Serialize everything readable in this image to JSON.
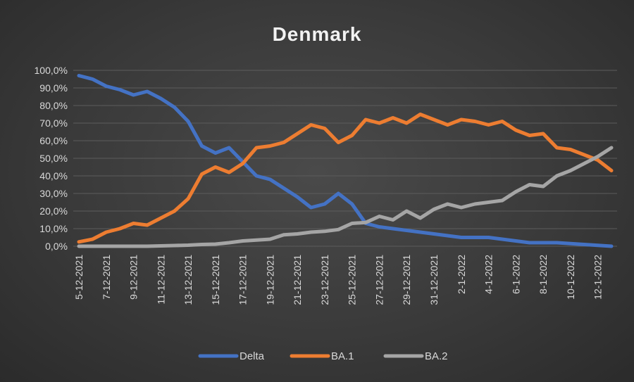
{
  "chart_data": {
    "type": "line",
    "title": "Denmark",
    "xlabel": "",
    "ylabel": "",
    "ylim": [
      0,
      100
    ],
    "grid": true,
    "legend_position": "bottom",
    "y_ticks": [
      "0,0%",
      "10,0%",
      "20,0%",
      "30,0%",
      "40,0%",
      "50,0%",
      "60,0%",
      "70,0%",
      "80,0%",
      "90,0%",
      "100,0%"
    ],
    "categories": [
      "5-12-2021",
      "6-12-2021",
      "7-12-2021",
      "8-12-2021",
      "9-12-2021",
      "10-12-2021",
      "11-12-2021",
      "12-12-2021",
      "13-12-2021",
      "14-12-2021",
      "15-12-2021",
      "16-12-2021",
      "17-12-2021",
      "18-12-2021",
      "19-12-2021",
      "20-12-2021",
      "21-12-2021",
      "22-12-2021",
      "23-12-2021",
      "24-12-2021",
      "25-12-2021",
      "26-12-2021",
      "27-12-2021",
      "28-12-2021",
      "29-12-2021",
      "30-12-2021",
      "31-12-2021",
      "1-1-2022",
      "2-1-2022",
      "3-1-2022",
      "4-1-2022",
      "5-1-2022",
      "6-1-2022",
      "7-1-2022",
      "8-1-2022",
      "9-1-2022",
      "10-1-2022",
      "11-1-2022",
      "12-1-2022",
      "13-1-2022"
    ],
    "x_tick_labels": [
      "5-12-2021",
      "7-12-2021",
      "9-12-2021",
      "11-12-2021",
      "13-12-2021",
      "15-12-2021",
      "17-12-2021",
      "19-12-2021",
      "21-12-2021",
      "23-12-2021",
      "25-12-2021",
      "27-12-2021",
      "29-12-2021",
      "31-12-2021",
      "2-1-2022",
      "4-1-2022",
      "6-1-2022",
      "8-1-2022",
      "10-1-2022",
      "12-1-2022"
    ],
    "series": [
      {
        "name": "Delta",
        "color": "#4472c4",
        "values": [
          97,
          95,
          91,
          89,
          86,
          88,
          84,
          79,
          71,
          57,
          53,
          56,
          48,
          40,
          38,
          33,
          28,
          22,
          24,
          30,
          24,
          13,
          11,
          10,
          9,
          8,
          7,
          6,
          5,
          5,
          5,
          4,
          3,
          2,
          2,
          2,
          1.5,
          1,
          0.5,
          0
        ]
      },
      {
        "name": "BA.1",
        "color": "#ed7d31",
        "values": [
          2.5,
          4,
          8,
          10,
          13,
          12,
          16,
          20,
          27,
          41,
          45,
          42,
          47,
          56,
          57,
          59,
          64,
          69,
          67,
          59,
          63,
          72,
          70,
          73,
          70,
          75,
          72,
          69,
          72,
          71,
          69,
          71,
          66,
          63,
          64,
          56,
          55,
          52,
          49,
          43
        ]
      },
      {
        "name": "BA.2",
        "color": "#a5a5a5",
        "values": [
          0,
          0,
          0,
          0,
          0,
          0,
          0.2,
          0.4,
          0.6,
          1,
          1.2,
          2,
          3,
          3.5,
          4,
          6.5,
          7,
          8,
          8.5,
          9.5,
          13,
          13.5,
          17,
          15,
          20,
          16,
          21,
          24,
          22,
          24,
          25,
          26,
          31,
          35,
          34,
          40,
          43,
          47,
          51,
          56
        ]
      }
    ]
  }
}
